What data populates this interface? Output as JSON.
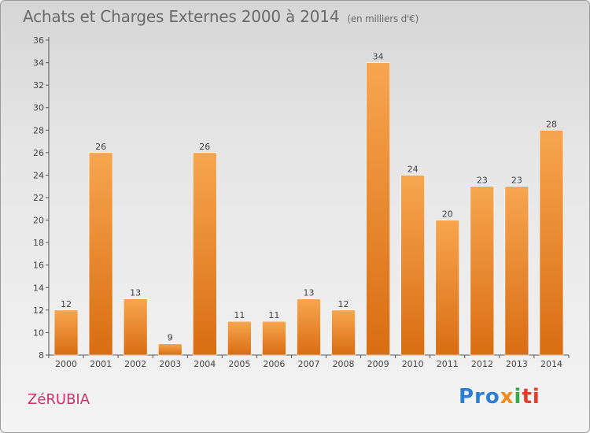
{
  "header": {
    "title": "Achats et Charges Externes 2000 à 2014",
    "subtitle": "(en milliers d'€)"
  },
  "footer": {
    "commune": "ZéRUBIA",
    "logo": [
      "Pro",
      "x",
      "i",
      "ti"
    ]
  },
  "colors": {
    "bar_top": "#f7a650",
    "bar_bottom": "#d96d12",
    "commune": "#c8336a",
    "axis": "#555555"
  },
  "chart_data": {
    "type": "bar",
    "title": "Achats et Charges Externes 2000 à 2014",
    "subtitle": "(en milliers d'€)",
    "xlabel": "",
    "ylabel": "",
    "categories": [
      "2000",
      "2001",
      "2002",
      "2003",
      "2004",
      "2005",
      "2006",
      "2007",
      "2008",
      "2009",
      "2010",
      "2011",
      "2012",
      "2013",
      "2014"
    ],
    "values": [
      12,
      26,
      13,
      9,
      26,
      11,
      11,
      13,
      12,
      34,
      24,
      20,
      23,
      23,
      28
    ],
    "ylim": [
      8,
      36
    ],
    "yticks": [
      8,
      10,
      12,
      14,
      16,
      18,
      20,
      22,
      24,
      26,
      28,
      30,
      32,
      34,
      36
    ],
    "grid": false,
    "legend": "none"
  }
}
